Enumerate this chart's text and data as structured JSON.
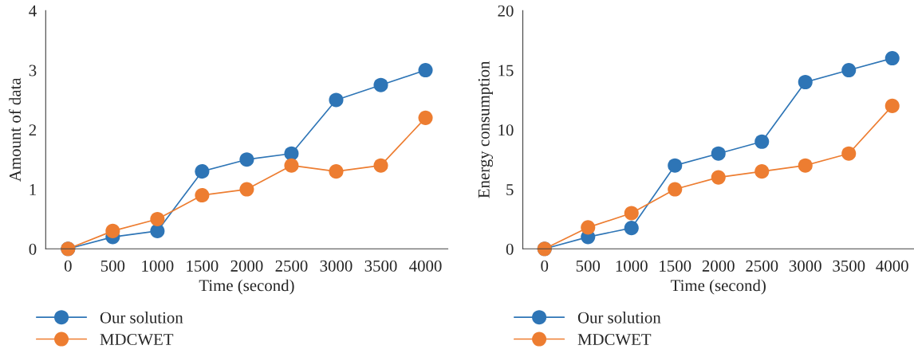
{
  "chart_data": [
    {
      "type": "line",
      "xlabel": "Time (second)",
      "ylabel": "Amount of data",
      "categories": [
        "0",
        "500",
        "1000",
        "1500",
        "2000",
        "2500",
        "3000",
        "3500",
        "4000"
      ],
      "ylim": [
        0,
        4
      ],
      "yticks": [
        0,
        1,
        2,
        3,
        4
      ],
      "grid": false,
      "legend": "bottom left",
      "marker": "circle",
      "line_style": "solid",
      "series": [
        {
          "name": "Our solution",
          "color": "#2e75b6",
          "values": [
            0,
            0.2,
            0.3,
            1.3,
            1.5,
            1.6,
            2.5,
            2.75,
            3.0
          ]
        },
        {
          "name": "MDCWET",
          "color": "#ed7d31",
          "values": [
            0,
            0.3,
            0.5,
            0.9,
            1.0,
            1.4,
            1.3,
            1.4,
            2.2
          ]
        }
      ]
    },
    {
      "type": "line",
      "xlabel": "Time (second)",
      "ylabel": "Energy consumption",
      "categories": [
        "0",
        "500",
        "1000",
        "1500",
        "2000",
        "2500",
        "3000",
        "3500",
        "4000"
      ],
      "ylim": [
        0,
        20
      ],
      "yticks": [
        0,
        5,
        10,
        15,
        20
      ],
      "grid": false,
      "legend": "bottom left",
      "marker": "circle",
      "line_style": "solid",
      "series": [
        {
          "name": "Our solution",
          "color": "#2e75b6",
          "values": [
            0,
            1,
            1.75,
            7,
            8,
            9,
            14,
            15,
            16
          ]
        },
        {
          "name": "MDCWET",
          "color": "#ed7d31",
          "values": [
            0,
            1.8,
            3,
            5,
            6,
            6.5,
            7,
            8,
            12
          ]
        }
      ]
    }
  ]
}
